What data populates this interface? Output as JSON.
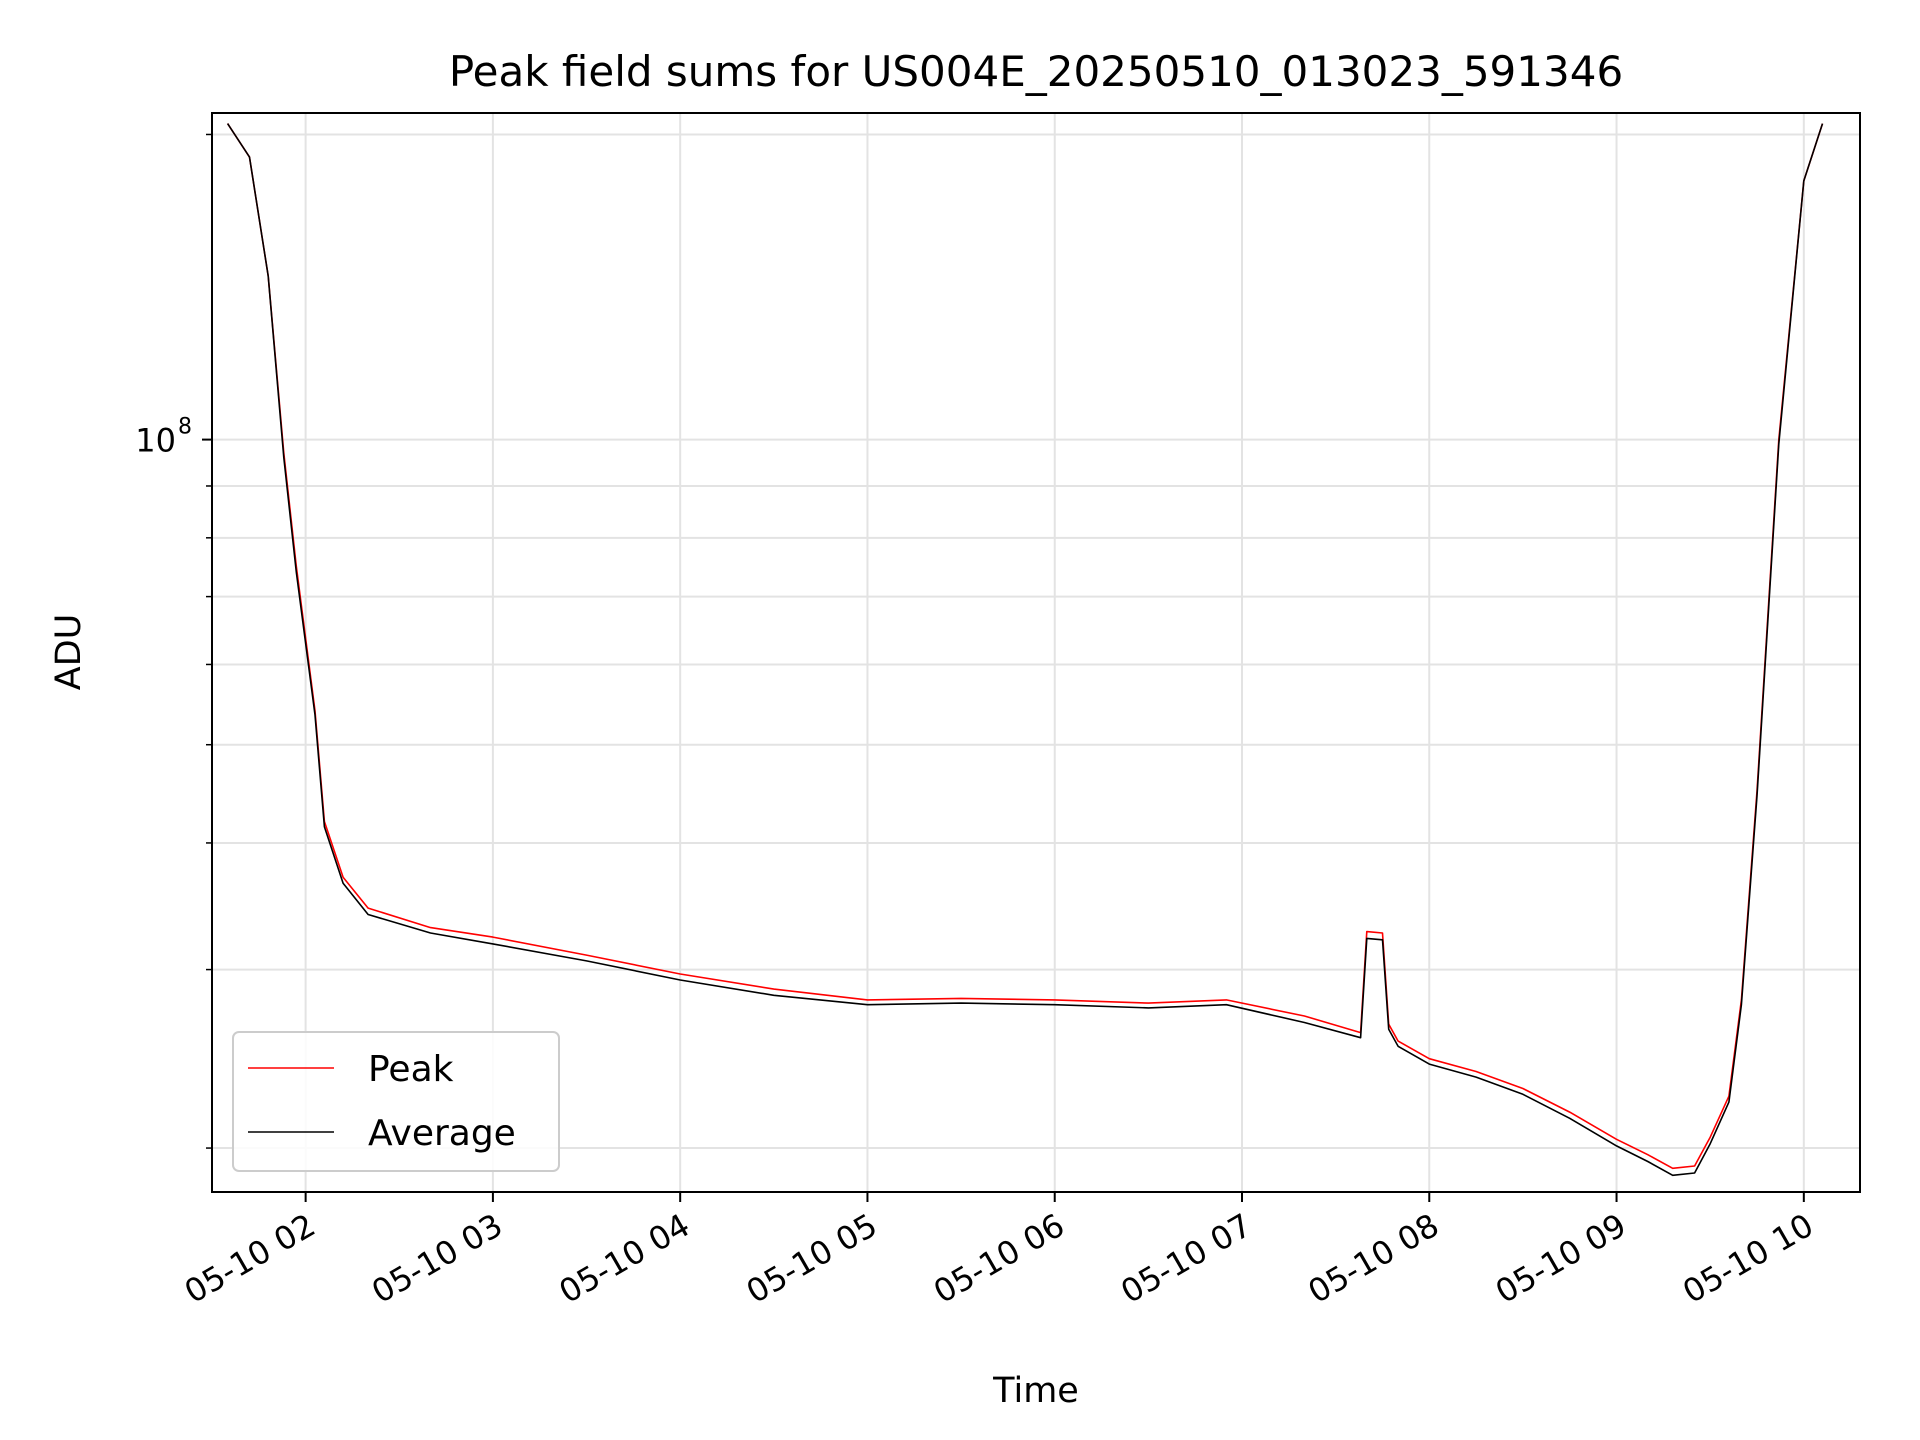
{
  "chart_data": {
    "type": "line",
    "title": "Peak field sums for US004E_20250510_013023_591346",
    "xlabel": "Time",
    "ylabel": "ADU",
    "y_scale": "log",
    "ylim": [
      18100000,
      210000000
    ],
    "xlim": [
      "2025-05-10 01:30",
      "2025-05-10 10:18"
    ],
    "x_ticks": [
      "05-10 02",
      "05-10 03",
      "05-10 04",
      "05-10 05",
      "05-10 06",
      "05-10 07",
      "05-10 08",
      "05-10 09",
      "05-10 10"
    ],
    "y_ticks": [
      {
        "value": 100000000,
        "label": "10",
        "exponent": "8"
      }
    ],
    "grid": true,
    "legend_position": "lower-left",
    "legend": [
      "Peak",
      "Average"
    ],
    "series": [
      {
        "name": "Peak",
        "color": "#ff0000",
        "x": [
          "2025-05-10 01:35",
          "2025-05-10 01:42",
          "2025-05-10 01:48",
          "2025-05-10 01:53",
          "2025-05-10 01:57",
          "2025-05-10 02:03",
          "2025-05-10 02:06",
          "2025-05-10 02:12",
          "2025-05-10 02:20",
          "2025-05-10 02:40",
          "2025-05-10 03:00",
          "2025-05-10 03:30",
          "2025-05-10 04:00",
          "2025-05-10 04:30",
          "2025-05-10 05:00",
          "2025-05-10 05:30",
          "2025-05-10 06:00",
          "2025-05-10 06:30",
          "2025-05-10 06:55",
          "2025-05-10 07:20",
          "2025-05-10 07:38",
          "2025-05-10 07:40",
          "2025-05-10 07:45",
          "2025-05-10 07:47",
          "2025-05-10 07:50",
          "2025-05-10 08:00",
          "2025-05-10 08:15",
          "2025-05-10 08:30",
          "2025-05-10 08:45",
          "2025-05-10 09:00",
          "2025-05-10 09:10",
          "2025-05-10 09:18",
          "2025-05-10 09:25",
          "2025-05-10 09:30",
          "2025-05-10 09:36",
          "2025-05-10 09:40",
          "2025-05-10 09:45",
          "2025-05-10 09:52",
          "2025-05-10 10:00",
          "2025-05-10 10:06"
        ],
        "y": [
          205000000,
          190000000,
          145000000,
          97000000,
          75000000,
          54000000,
          42000000,
          37000000,
          34500000,
          33000000,
          32300000,
          31000000,
          29700000,
          28700000,
          28000000,
          28100000,
          28000000,
          27800000,
          28000000,
          27000000,
          26000000,
          32700000,
          32600000,
          26500000,
          25500000,
          24500000,
          23800000,
          22900000,
          21700000,
          20400000,
          19700000,
          19100000,
          19200000,
          20500000,
          22500000,
          28000000,
          45000000,
          100000000,
          180000000,
          205000000
        ]
      },
      {
        "name": "Average",
        "color": "#000000",
        "x": [
          "2025-05-10 01:35",
          "2025-05-10 01:42",
          "2025-05-10 01:48",
          "2025-05-10 01:53",
          "2025-05-10 01:57",
          "2025-05-10 02:03",
          "2025-05-10 02:06",
          "2025-05-10 02:12",
          "2025-05-10 02:20",
          "2025-05-10 02:40",
          "2025-05-10 03:00",
          "2025-05-10 03:30",
          "2025-05-10 04:00",
          "2025-05-10 04:30",
          "2025-05-10 05:00",
          "2025-05-10 05:30",
          "2025-05-10 06:00",
          "2025-05-10 06:30",
          "2025-05-10 06:55",
          "2025-05-10 07:20",
          "2025-05-10 07:38",
          "2025-05-10 07:40",
          "2025-05-10 07:45",
          "2025-05-10 07:47",
          "2025-05-10 07:50",
          "2025-05-10 08:00",
          "2025-05-10 08:15",
          "2025-05-10 08:30",
          "2025-05-10 08:45",
          "2025-05-10 09:00",
          "2025-05-10 09:10",
          "2025-05-10 09:18",
          "2025-05-10 09:25",
          "2025-05-10 09:30",
          "2025-05-10 09:36",
          "2025-05-10 09:40",
          "2025-05-10 09:45",
          "2025-05-10 09:52",
          "2025-05-10 10:00",
          "2025-05-10 10:06"
        ],
        "y": [
          205000000,
          190000000,
          145000000,
          96000000,
          74000000,
          53500000,
          41500000,
          36500000,
          34000000,
          32600000,
          31800000,
          30600000,
          29300000,
          28300000,
          27700000,
          27800000,
          27700000,
          27500000,
          27700000,
          26600000,
          25700000,
          32200000,
          32100000,
          26200000,
          25200000,
          24200000,
          23500000,
          22600000,
          21400000,
          20100000,
          19400000,
          18800000,
          18900000,
          20200000,
          22200000,
          27700000,
          44500000,
          99000000,
          180000000,
          205000000
        ]
      }
    ]
  }
}
